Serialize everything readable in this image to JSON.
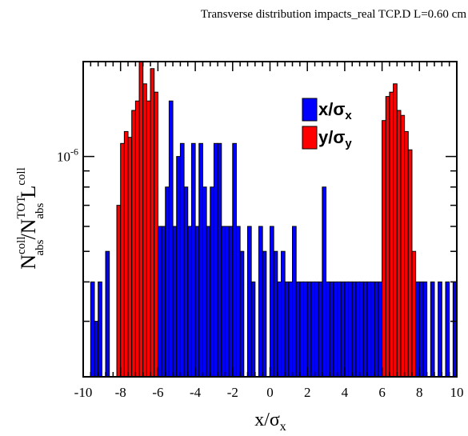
{
  "chart_data": {
    "type": "bar",
    "title": "Transverse distribution impacts_real  TCP.D L=0.60 cm",
    "xlabel": {
      "main": "x/σ",
      "sub": "x"
    },
    "ylabel": {
      "n1": "N",
      "n1_sup": "coll",
      "n1_sub": "abs",
      "slash": "/",
      "n2": "N",
      "n2_sup": "TOT",
      "n2_sub": "abs",
      "l": "L",
      "l_sup": "coll"
    },
    "xlim": [
      -10,
      10
    ],
    "y_scale": "log",
    "ylim": [
      2e-07,
      2e-06
    ],
    "x_tick_labels": [
      "-10",
      "-8",
      "-6",
      "-4",
      "-2",
      "0",
      "2",
      "4",
      "6",
      "8",
      "10"
    ],
    "x_ticks": [
      -10,
      -8,
      -6,
      -4,
      -2,
      0,
      2,
      4,
      6,
      8,
      10
    ],
    "y_tick_label": {
      "base": "10",
      "exp": "-6"
    },
    "y_tick_value": 1e-06,
    "bin_width": 0.2,
    "legend": {
      "position": "top-right",
      "entries": [
        {
          "main": "x/σ",
          "sub": "x",
          "color": "#0000ff"
        },
        {
          "main": "y/σ",
          "sub": "y",
          "color": "#ff0000"
        }
      ]
    },
    "series": [
      {
        "name": "x/σx",
        "color": "#0000ff",
        "x": [
          -9.5,
          -9.3,
          -9.1,
          -8.7,
          -7.7,
          -7.5,
          -7.1,
          -6.9,
          -6.5,
          -6.3,
          -6.1,
          -5.9,
          -5.7,
          -5.5,
          -5.3,
          -5.1,
          -4.9,
          -4.7,
          -4.5,
          -4.3,
          -4.1,
          -3.9,
          -3.7,
          -3.5,
          -3.3,
          -3.1,
          -2.9,
          -2.7,
          -2.5,
          -2.3,
          -2.1,
          -1.9,
          -1.7,
          -1.5,
          -1.1,
          -0.9,
          -0.5,
          -0.3,
          0.1,
          0.3,
          0.5,
          0.7,
          0.9,
          1.1,
          1.3,
          1.5,
          1.7,
          1.9,
          2.1,
          2.3,
          2.5,
          2.7,
          2.9,
          3.1,
          3.3,
          3.5,
          3.7,
          3.9,
          4.1,
          4.3,
          4.5,
          4.7,
          4.9,
          5.1,
          5.3,
          5.5,
          5.7,
          5.9,
          6.1,
          6.3,
          6.5,
          6.7,
          6.9,
          7.1,
          7.3,
          7.5,
          7.7,
          7.9,
          8.1,
          8.3,
          8.7,
          9.1,
          9.5,
          9.9
        ],
        "values": [
          4e-07,
          3e-07,
          4e-07,
          5e-07,
          6e-07,
          1e-06,
          5e-07,
          6e-07,
          8e-07,
          5e-07,
          8e-07,
          6e-07,
          6e-07,
          8e-07,
          1.5e-06,
          6e-07,
          1e-06,
          1.1e-06,
          8e-07,
          6e-07,
          1.1e-06,
          6e-07,
          1.1e-06,
          8e-07,
          6e-07,
          8e-07,
          1.1e-06,
          1.1e-06,
          6e-07,
          6e-07,
          6e-07,
          1.1e-06,
          6e-07,
          5e-07,
          6e-07,
          4e-07,
          6e-07,
          5e-07,
          6e-07,
          5e-07,
          4e-07,
          5e-07,
          4e-07,
          4e-07,
          6e-07,
          4e-07,
          4e-07,
          4e-07,
          4e-07,
          4e-07,
          4e-07,
          4e-07,
          8e-07,
          4e-07,
          4e-07,
          4e-07,
          4e-07,
          4e-07,
          4e-07,
          4e-07,
          4e-07,
          4e-07,
          4e-07,
          4e-07,
          4e-07,
          4e-07,
          4e-07,
          4e-07,
          4e-07,
          4e-07,
          4e-07,
          4e-07,
          4e-07,
          4e-07,
          4e-07,
          4e-07,
          4e-07,
          4e-07,
          4e-07,
          4e-07,
          4e-07,
          4e-07,
          4e-07,
          4e-07
        ]
      },
      {
        "name": "y/σy",
        "color": "#ff0000",
        "x": [
          -8.1,
          -7.9,
          -7.7,
          -7.5,
          -7.3,
          -7.1,
          -6.9,
          -6.7,
          -6.5,
          -6.3,
          -6.1,
          6.1,
          6.3,
          6.5,
          6.7,
          6.9,
          7.1,
          7.3,
          7.5,
          7.7
        ],
        "values": [
          7e-07,
          1.1e-06,
          1.2e-06,
          1.15e-06,
          1.4e-06,
          1.5e-06,
          2.05e-06,
          1.7e-06,
          1.5e-06,
          1.9e-06,
          1.6e-06,
          1.3e-06,
          1.55e-06,
          1.6e-06,
          1.7e-06,
          1.4e-06,
          1.35e-06,
          1.2e-06,
          1.05e-06,
          5e-07
        ]
      }
    ]
  }
}
